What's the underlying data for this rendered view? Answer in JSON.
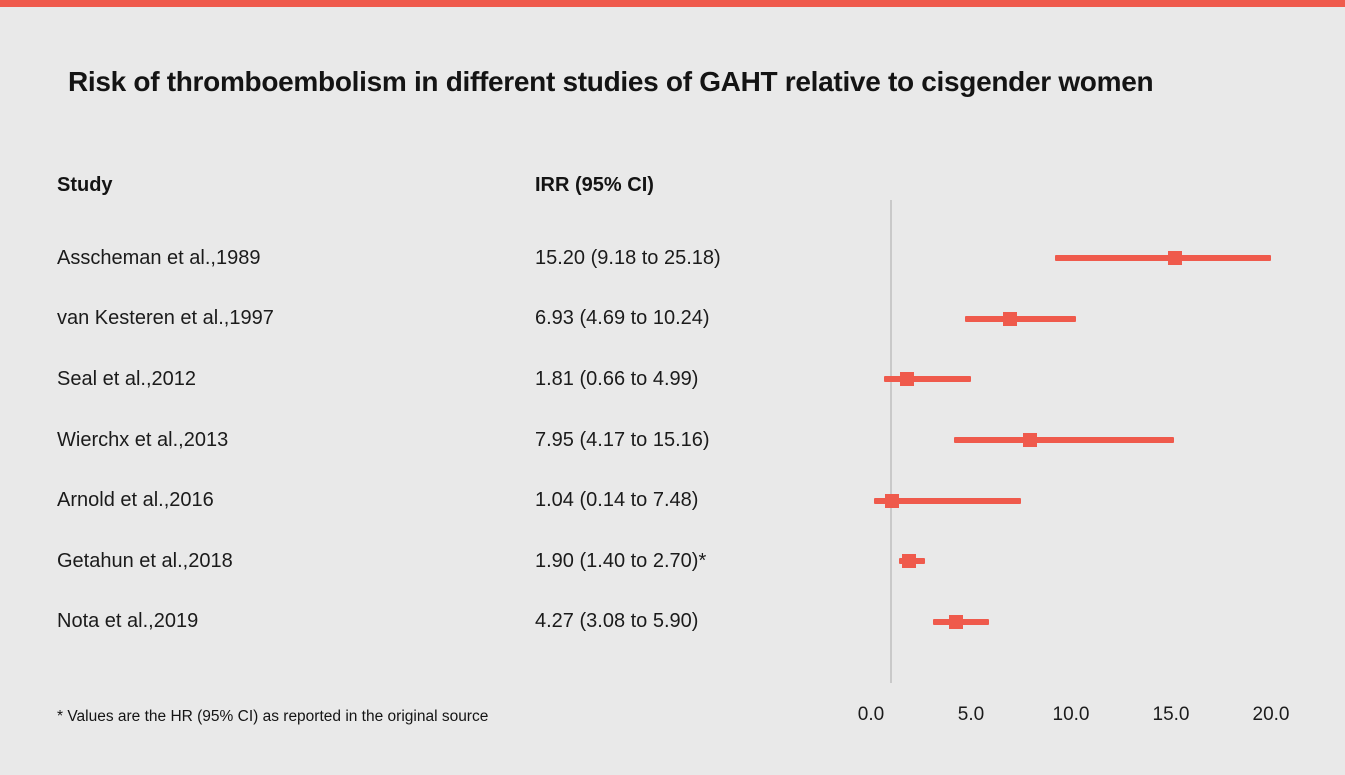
{
  "title": "Risk of thromboembolism in different studies of GAHT relative to cisgender women",
  "columns": {
    "study": "Study",
    "irr": "IRR (95% CI)"
  },
  "footnote": "* Values are the HR (95% CI) as reported in the original source",
  "colors": {
    "accent": "#ef5a4c",
    "background": "#e9e9e9",
    "reference_line": "#c9c9c9",
    "text": "#1a1a1a"
  },
  "chart_data": {
    "type": "forest",
    "title": "Risk of thromboembolism in different studies of GAHT relative to cisgender women",
    "xlabel": "",
    "ylabel": "",
    "xlim": [
      0,
      20
    ],
    "x_ticks": [
      0,
      5,
      10,
      15,
      20
    ],
    "tick_labels": [
      "0.0",
      "5.0",
      "10.0",
      "15.0",
      "20.0"
    ],
    "reference_line": 1.0,
    "grid": false,
    "legend": false,
    "studies": [
      {
        "label": "Asscheman et al.,1989",
        "irr_text": "15.20 (9.18 to 25.18)",
        "est": 15.2,
        "lo": 9.18,
        "hi": 25.18
      },
      {
        "label": "van Kesteren et al.,1997",
        "irr_text": "6.93 (4.69 to 10.24)",
        "est": 6.93,
        "lo": 4.69,
        "hi": 10.24
      },
      {
        "label": "Seal et al.,2012",
        "irr_text": "1.81 (0.66 to 4.99)",
        "est": 1.81,
        "lo": 0.66,
        "hi": 4.99
      },
      {
        "label": "Wierchx et al.,2013",
        "irr_text": "7.95 (4.17 to 15.16)",
        "est": 7.95,
        "lo": 4.17,
        "hi": 15.16
      },
      {
        "label": "Arnold et al.,2016",
        "irr_text": "1.04 (0.14 to 7.48)",
        "est": 1.04,
        "lo": 0.14,
        "hi": 7.48
      },
      {
        "label": "Getahun et al.,2018",
        "irr_text": "1.90 (1.40 to 2.70)*",
        "est": 1.9,
        "lo": 1.4,
        "hi": 2.7
      },
      {
        "label": "Nota et al.,2019",
        "irr_text": "4.27 (3.08 to 5.90)",
        "est": 4.27,
        "lo": 3.08,
        "hi": 5.9
      }
    ]
  }
}
